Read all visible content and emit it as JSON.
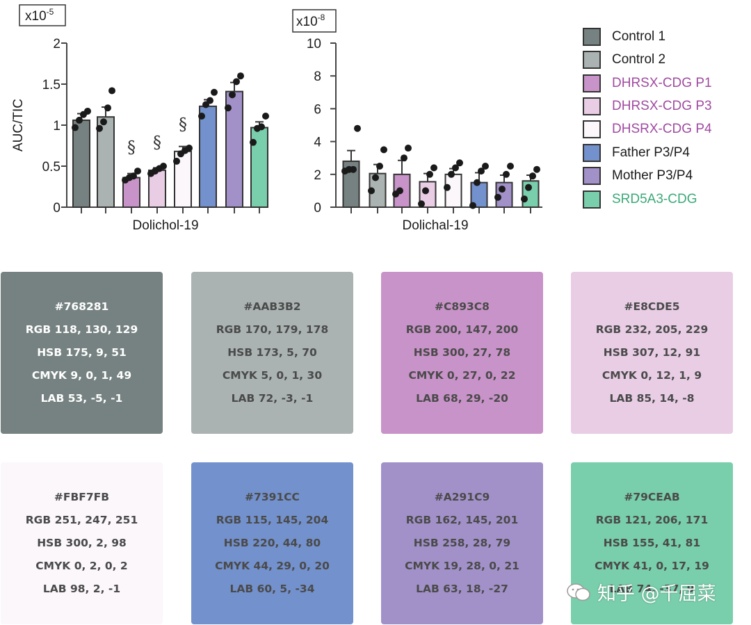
{
  "chart_data": [
    {
      "type": "bar",
      "title": "",
      "xlabel": "Dolichol-19",
      "ylabel": "AUC/TIC",
      "scale_label": "x10-5",
      "ylim": [
        0,
        2
      ],
      "yticks": [
        "0",
        "0.5",
        "1",
        "1.5",
        "2"
      ],
      "categories": [
        "Control 1",
        "Control 2",
        "DHRSX-CDG P1",
        "DHRSX-CDG P3",
        "DHSRX-CDG P4",
        "Father P3/P4",
        "Mother P3/P4",
        "SRD5A3-CDG"
      ],
      "values": [
        1.06,
        1.1,
        0.36,
        0.45,
        0.68,
        1.23,
        1.41,
        0.97
      ],
      "errors": [
        0.08,
        0.12,
        0.05,
        0.03,
        0.06,
        0.08,
        0.11,
        0.07
      ],
      "points": [
        [
          0.97,
          1.06,
          1.13,
          1.17
        ],
        [
          0.96,
          1.04,
          1.21,
          1.42
        ],
        [
          0.33,
          0.36,
          0.38,
          0.44
        ],
        [
          0.41,
          0.44,
          0.47,
          0.5
        ],
        [
          0.56,
          0.65,
          0.69,
          0.72
        ],
        [
          1.11,
          1.25,
          1.3,
          1.4
        ],
        [
          1.21,
          1.37,
          1.53,
          1.6
        ],
        [
          0.79,
          0.96,
          0.98,
          1.11
        ]
      ],
      "annotations": [
        "",
        "",
        "§",
        "§",
        "§",
        "",
        "",
        ""
      ]
    },
    {
      "type": "bar",
      "title": "",
      "xlabel": "Dolichal-19",
      "ylabel": "",
      "scale_label": "x10-8",
      "ylim": [
        0,
        10
      ],
      "yticks": [
        "0",
        "2",
        "4",
        "6",
        "8",
        "10"
      ],
      "categories": [
        "Control 1",
        "Control 2",
        "DHRSX-CDG P1",
        "DHRSX-CDG P3",
        "DHSRX-CDG P4",
        "Father P3/P4",
        "Mother P3/P4",
        "SRD5A3-CDG"
      ],
      "values": [
        2.8,
        2.05,
        2.0,
        1.55,
        2.0,
        1.5,
        1.5,
        1.6
      ],
      "errors": [
        0.65,
        0.55,
        0.85,
        0.5,
        0.35,
        0.6,
        0.45,
        0.35
      ],
      "points": [
        [
          2.2,
          2.3,
          2.3,
          4.8
        ],
        [
          1.0,
          1.8,
          2.5,
          3.5
        ],
        [
          0.8,
          1.0,
          3.0,
          3.6
        ],
        [
          0.2,
          1.0,
          2.0,
          2.4
        ],
        [
          1.2,
          2.0,
          2.4,
          2.7
        ],
        [
          0.1,
          1.5,
          2.2,
          2.5
        ],
        [
          0.6,
          1.1,
          2.0,
          2.5
        ],
        [
          0.5,
          1.2,
          1.9,
          2.3
        ]
      ],
      "annotations": [
        "",
        "",
        "",
        "",
        "",
        "",
        "",
        ""
      ]
    }
  ],
  "legend": [
    {
      "label": "Control 1",
      "color": "#768281",
      "text_color": "#1a1a1a"
    },
    {
      "label": "Control 2",
      "color": "#AAB3B2",
      "text_color": "#1a1a1a"
    },
    {
      "label": "DHRSX-CDG P1",
      "color": "#C893C8",
      "text_color": "#a04aa0"
    },
    {
      "label": "DHRSX-CDG P3",
      "color": "#E8CDE5",
      "text_color": "#a04aa0"
    },
    {
      "label": "DHSRX-CDG P4",
      "color": "#FBF7FB",
      "text_color": "#a04aa0"
    },
    {
      "label": "Father P3/P4",
      "color": "#7391CC",
      "text_color": "#1a1a1a"
    },
    {
      "label": "Mother P3/P4",
      "color": "#A291C9",
      "text_color": "#1a1a1a"
    },
    {
      "label": "SRD5A3-CDG",
      "color": "#79CEAB",
      "text_color": "#3aa878"
    }
  ],
  "swatches": [
    {
      "hex": "#768281",
      "rgb": "RGB 118, 130, 129",
      "hsb": "HSB 175, 9, 51",
      "cmyk": "CMYK 9, 0, 1, 49",
      "lab": "LAB 53, -5, -1",
      "text_color": "#ffffff"
    },
    {
      "hex": "#AAB3B2",
      "rgb": "RGB 170, 179, 178",
      "hsb": "HSB 173, 5, 70",
      "cmyk": "CMYK 5, 0, 1, 30",
      "lab": "LAB 72, -3, -1",
      "text_color": "#4a4a4a"
    },
    {
      "hex": "#C893C8",
      "rgb": "RGB 200, 147, 200",
      "hsb": "HSB 300, 27, 78",
      "cmyk": "CMYK 0, 27, 0, 22",
      "lab": "LAB 68, 29, -20",
      "text_color": "#4a4a4a"
    },
    {
      "hex": "#E8CDE5",
      "rgb": "RGB 232, 205, 229",
      "hsb": "HSB 307, 12, 91",
      "cmyk": "CMYK 0, 12, 1, 9",
      "lab": "LAB 85, 14, -8",
      "text_color": "#4a4a4a"
    },
    {
      "hex": "#FBF7FB",
      "rgb": "RGB 251, 247, 251",
      "hsb": "HSB 300, 2, 98",
      "cmyk": "CMYK 0, 2, 0, 2",
      "lab": "LAB 98, 2, -1",
      "text_color": "#4a4a4a"
    },
    {
      "hex": "#7391CC",
      "rgb": "RGB 115, 145, 204",
      "hsb": "HSB 220, 44, 80",
      "cmyk": "CMYK 44, 29, 0, 20",
      "lab": "LAB 60, 5, -34",
      "text_color": "#4a4a4a"
    },
    {
      "hex": "#A291C9",
      "rgb": "RGB 162, 145, 201",
      "hsb": "HSB 258, 28, 79",
      "cmyk": "CMYK 19, 28, 0, 21",
      "lab": "LAB 63, 18, -27",
      "text_color": "#4a4a4a"
    },
    {
      "hex": "#79CEAB",
      "rgb": "RGB 121, 206, 171",
      "hsb": "HSB 155, 41, 81",
      "cmyk": "CMYK 41, 0, 17, 19",
      "lab": "LAB 74, -37, 9",
      "text_color": "#4a4a4a"
    }
  ],
  "watermark": {
    "text": "知乎 @千屈菜"
  }
}
